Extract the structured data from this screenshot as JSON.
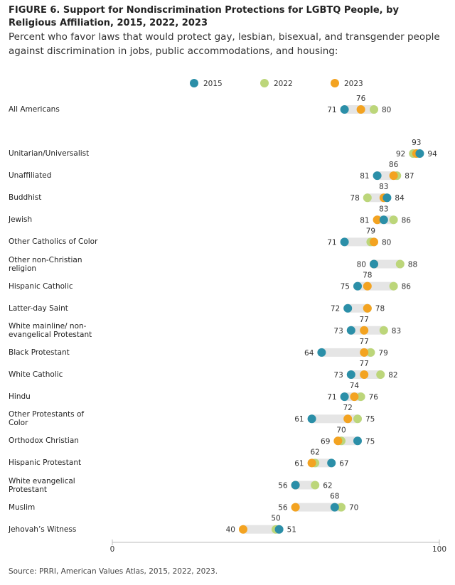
{
  "chart_data": {
    "type": "dot",
    "title": "FIGURE 6.  Support for Nondiscrimination Protections for LGBTQ People, by Religious Affiliation, 2015, 2022, 2023",
    "subtitle": "Percent who favor laws that would protect gay, lesbian, bisexual, and transgender people against discrimination in jobs, public accommodations, and housing:",
    "source": "Source: PRRI, American Values Atlas, 2015, 2022, 2023.",
    "categories": [
      "All Americans",
      "Unitarian/Universalist",
      "Unaffiliated",
      "Buddhist",
      "Jewish",
      "Other Catholics of Color",
      "Other non-Christian religion",
      "Hispanic Catholic",
      "Latter-day Saint",
      "White mainline/ non-evangelical Protestant",
      "Black Protestant",
      "White Catholic",
      "Hindu",
      "Other Protestants of Color",
      "Orthodox Christian",
      "Hispanic Protestant",
      "White evangelical Protestant",
      "Muslim",
      "Jehovah’s Witness"
    ],
    "series": [
      {
        "name": "2015",
        "color": "#2b8fa8",
        "values": [
          71,
          94,
          81,
          84,
          83,
          71,
          80,
          75,
          72,
          73,
          64,
          73,
          71,
          61,
          75,
          67,
          56,
          68,
          51
        ]
      },
      {
        "name": "2022",
        "color": "#bcd67a",
        "values": [
          80,
          92,
          87,
          78,
          86,
          79,
          88,
          86,
          78,
          83,
          79,
          82,
          76,
          75,
          70,
          62,
          62,
          70,
          50
        ]
      },
      {
        "name": "2023",
        "color": "#f3a321",
        "values": [
          76,
          93,
          86,
          83,
          81,
          80,
          80,
          78,
          78,
          77,
          77,
          77,
          74,
          72,
          69,
          61,
          56,
          56,
          40
        ]
      }
    ],
    "xlim": [
      0,
      100
    ],
    "xticks": [
      0,
      100
    ]
  }
}
